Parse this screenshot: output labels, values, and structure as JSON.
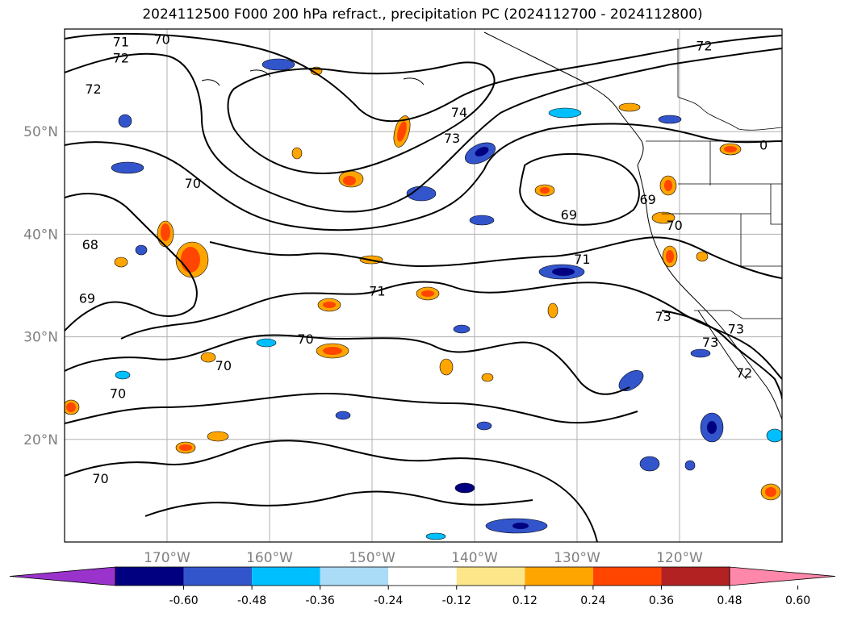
{
  "title": "2024112500 F000 200 hPa refract., precipitation PC (2024112700 - 2024112800)",
  "map": {
    "lat_labels": [
      {
        "lat": 50,
        "label": "50°N"
      },
      {
        "lat": 40,
        "label": "40°N"
      },
      {
        "lat": 30,
        "label": "30°N"
      },
      {
        "lat": 20,
        "label": "20°N"
      }
    ],
    "lon_labels": [
      {
        "lon": -170,
        "label": "170°W"
      },
      {
        "lon": -160,
        "label": "160°W"
      },
      {
        "lon": -150,
        "label": "150°W"
      },
      {
        "lon": -140,
        "label": "140°W"
      },
      {
        "lon": -130,
        "label": "130°W"
      },
      {
        "lon": -120,
        "label": "120°W"
      }
    ],
    "extent": {
      "lon_min": -180,
      "lon_max": -110,
      "lat_min": 10,
      "lat_max": 60
    },
    "grid": true,
    "contour_labels": [
      {
        "text": "71",
        "lon": -174.5,
        "lat": 58.8
      },
      {
        "text": "70",
        "lon": -170.5,
        "lat": 59.0
      },
      {
        "text": "72",
        "lon": -174.5,
        "lat": 57.2
      },
      {
        "text": "72",
        "lon": -177.2,
        "lat": 54.2
      },
      {
        "text": "72",
        "lon": -117.6,
        "lat": 58.4
      },
      {
        "text": "74",
        "lon": -141.5,
        "lat": 51.9
      },
      {
        "text": "73",
        "lon": -142.2,
        "lat": 49.4
      },
      {
        "text": "70",
        "lon": -167.5,
        "lat": 45.0
      },
      {
        "text": "69",
        "lon": -130.8,
        "lat": 41.9
      },
      {
        "text": "69",
        "lon": -123.1,
        "lat": 43.4
      },
      {
        "text": "70",
        "lon": -120.5,
        "lat": 40.9
      },
      {
        "text": "0",
        "lon": -111.8,
        "lat": 48.7
      },
      {
        "text": "68",
        "lon": -177.5,
        "lat": 39.0
      },
      {
        "text": "71",
        "lon": -129.5,
        "lat": 37.6
      },
      {
        "text": "69",
        "lon": -177.8,
        "lat": 33.8
      },
      {
        "text": "71",
        "lon": -149.5,
        "lat": 34.5
      },
      {
        "text": "70",
        "lon": -156.5,
        "lat": 29.8
      },
      {
        "text": "73",
        "lon": -121.6,
        "lat": 32.0
      },
      {
        "text": "73",
        "lon": -117.0,
        "lat": 29.5
      },
      {
        "text": "73",
        "lon": -114.5,
        "lat": 30.8
      },
      {
        "text": "70",
        "lon": -164.5,
        "lat": 27.2
      },
      {
        "text": "72",
        "lon": -113.7,
        "lat": 26.5
      },
      {
        "text": "70",
        "lon": -174.8,
        "lat": 24.5
      },
      {
        "text": "70",
        "lon": -176.5,
        "lat": 16.2
      }
    ]
  },
  "colorbar": {
    "ticks": [
      "-0.60",
      "-0.48",
      "-0.36",
      "-0.24",
      "-0.12",
      "0.12",
      "0.24",
      "0.36",
      "0.48",
      "0.60"
    ],
    "colors": [
      "#9933cc",
      "#000080",
      "#3355cc",
      "#00bfff",
      "#aadcf8",
      "#ffffff",
      "#fde68a",
      "#ffa500",
      "#ff4500",
      "#b22222",
      "#ff88aa"
    ]
  }
}
